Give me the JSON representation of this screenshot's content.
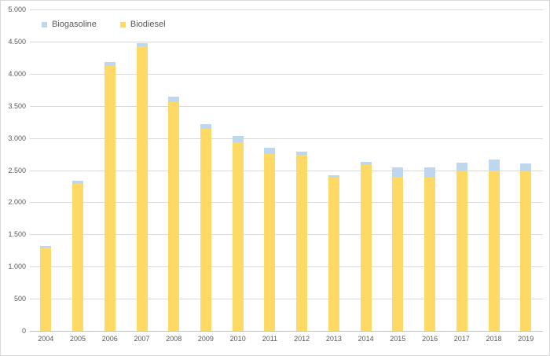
{
  "chart_data": {
    "type": "bar",
    "stacked": true,
    "title": "",
    "xlabel": "",
    "ylabel": "",
    "categories": [
      "2004",
      "2005",
      "2006",
      "2007",
      "2008",
      "2009",
      "2010",
      "2011",
      "2012",
      "2013",
      "2014",
      "2015",
      "2016",
      "2017",
      "2018",
      "2019"
    ],
    "series": [
      {
        "name": "Biodiesel",
        "color": "#FFD966",
        "values": [
          1300,
          2290,
          4120,
          4420,
          3555,
          3140,
          2930,
          2750,
          2740,
          2385,
          2580,
          2395,
          2385,
          2480,
          2495,
          2480
        ]
      },
      {
        "name": "Biogasoline",
        "color": "#BDD7EE",
        "values": [
          25,
          45,
          60,
          60,
          85,
          75,
          105,
          100,
          50,
          40,
          50,
          145,
          160,
          135,
          165,
          125
        ]
      }
    ],
    "legend": [
      {
        "label": "Biogasoline",
        "color": "#BDD7EE"
      },
      {
        "label": "Biodiesel",
        "color": "#FFD966"
      }
    ],
    "legend_position": "top-left",
    "grid": true,
    "ylim": [
      0,
      5000
    ],
    "ytick_step": 500,
    "ytick_labels": [
      "0",
      "500",
      "1.000",
      "1.500",
      "2.000",
      "2.500",
      "3.000",
      "3.500",
      "4.000",
      "4.500",
      "5.000"
    ],
    "colors": {
      "background": "#FFFFFF",
      "border": "#D9D9D9",
      "gridline": "#D9D9D9",
      "axis_line": "#BFBFBF",
      "tick_text": "#595959",
      "legend_text": "#595959"
    }
  }
}
